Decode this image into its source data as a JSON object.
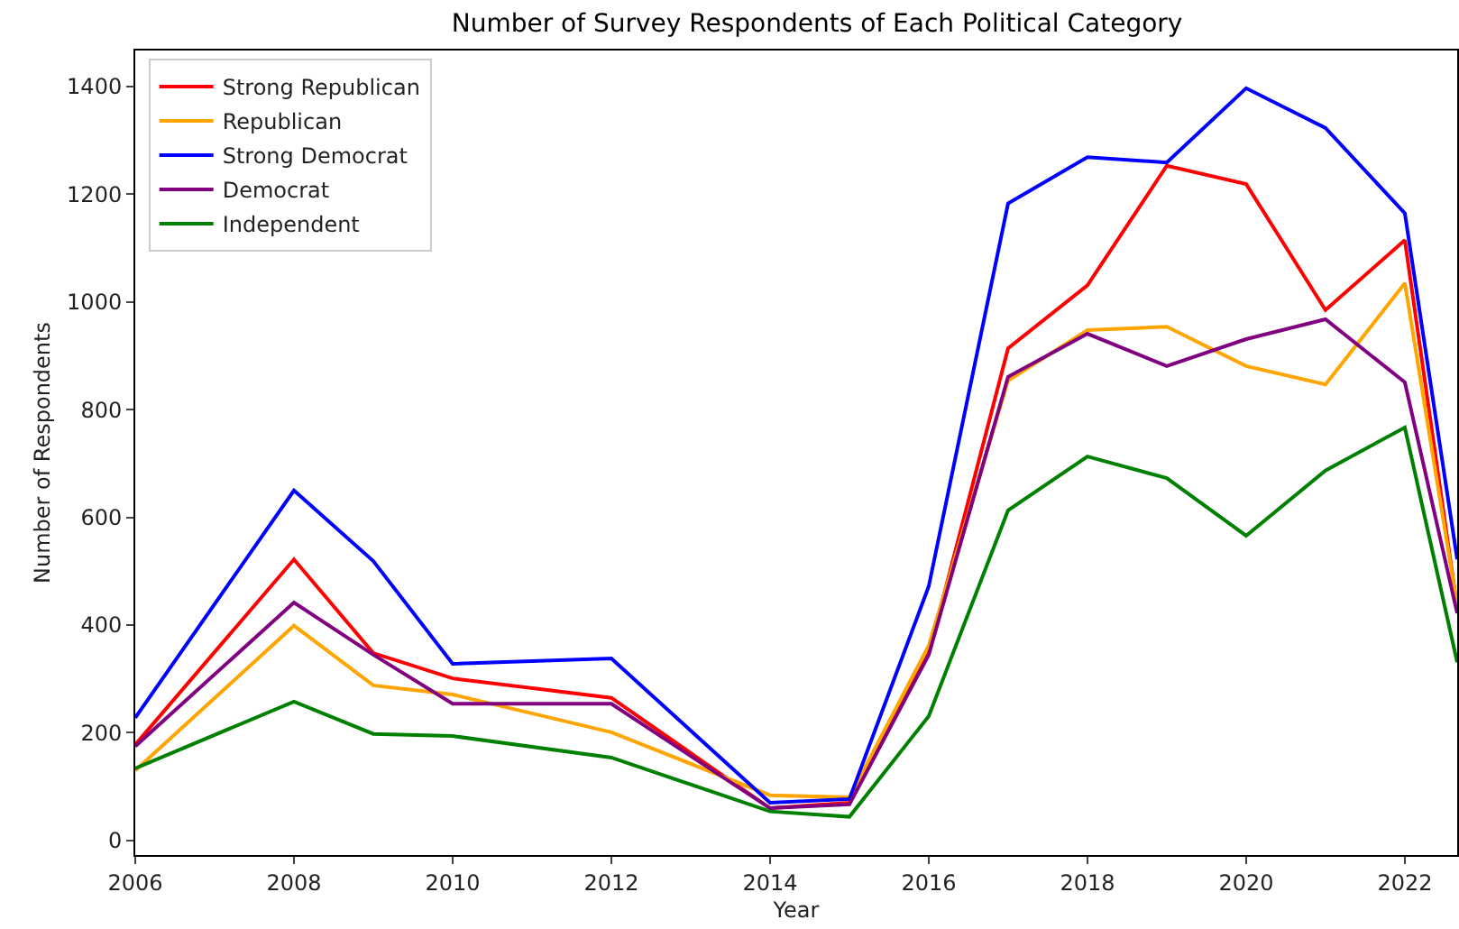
{
  "chart_data": {
    "type": "line",
    "title": "Number of Survey Respondents of Each Political Category",
    "xlabel": "Year",
    "ylabel": "Number of Respondents",
    "x": [
      2006,
      2008,
      2009,
      2010,
      2012,
      2014,
      2015,
      2016,
      2017,
      2018,
      2019,
      2020,
      2021,
      2022,
      2022.66
    ],
    "xlim": [
      2006,
      2022.66
    ],
    "xticks": [
      2006,
      2008,
      2010,
      2012,
      2014,
      2016,
      2018,
      2020,
      2022
    ],
    "ylim": [
      -27,
      1467
    ],
    "yticks": [
      0,
      200,
      400,
      600,
      800,
      1000,
      1200,
      1400
    ],
    "grid": false,
    "legend": "top left",
    "line_style": "solid",
    "marker": "none",
    "series": [
      {
        "name": "Strong Republican",
        "color": "#ff0000",
        "values": [
          178,
          522,
          348,
          301,
          265,
          60,
          70,
          348,
          914,
          1031,
          1253,
          1219,
          985,
          1115,
          432
        ]
      },
      {
        "name": "Republican",
        "color": "#ffa500",
        "values": [
          130,
          399,
          288,
          271,
          201,
          84,
          80,
          362,
          854,
          948,
          954,
          881,
          847,
          1035,
          437
        ]
      },
      {
        "name": "Strong Democrat",
        "color": "#0000ff",
        "values": [
          228,
          650,
          519,
          328,
          338,
          70,
          77,
          472,
          1183,
          1269,
          1259,
          1397,
          1323,
          1165,
          522
        ]
      },
      {
        "name": "Democrat",
        "color": "#800080",
        "values": [
          175,
          442,
          345,
          254,
          254,
          60,
          67,
          345,
          861,
          941,
          881,
          931,
          968,
          851,
          422
        ]
      },
      {
        "name": "Independent",
        "color": "#008000",
        "values": [
          134,
          258,
          198,
          194,
          154,
          54,
          44,
          231,
          613,
          713,
          673,
          566,
          687,
          767,
          331
        ]
      }
    ]
  }
}
